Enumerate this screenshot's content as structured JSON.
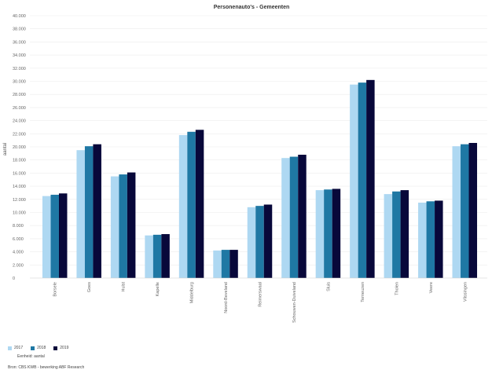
{
  "chart_data": {
    "type": "bar",
    "title": "Personenauto's - Gemeenten",
    "ylabel": "aantal",
    "xlabel": "",
    "ylim": [
      0,
      40000
    ],
    "yticks": [
      0,
      2000,
      4000,
      6000,
      8000,
      10000,
      12000,
      14000,
      16000,
      18000,
      20000,
      22000,
      24000,
      26000,
      28000,
      30000,
      32000,
      34000,
      36000,
      38000,
      40000
    ],
    "ytick_labels": [
      "0",
      "2.000",
      "4.000",
      "6.000",
      "8.000",
      "10.000",
      "12.000",
      "14.000",
      "16.000",
      "18.000",
      "20.000",
      "22.000",
      "24.000",
      "26.000",
      "28.000",
      "30.000",
      "32.000",
      "34.000",
      "36.000",
      "38.000",
      "40.000"
    ],
    "grid": true,
    "legend_position": "bottom-left",
    "categories": [
      "Borsele",
      "Goes",
      "Hulst",
      "Kapelle",
      "Middelburg",
      "Noord-Beveland",
      "Reimerswaal",
      "Schouwen-Duiveland",
      "Sluis",
      "Terneuzen",
      "Tholen",
      "Veere",
      "Vlissingen"
    ],
    "series": [
      {
        "name": "2017",
        "color": "#aed8f2",
        "values": [
          12500,
          19500,
          15500,
          6500,
          21800,
          4200,
          10800,
          18300,
          13400,
          29500,
          12800,
          11500,
          20100
        ]
      },
      {
        "name": "2018",
        "color": "#1f78a4",
        "values": [
          12700,
          20100,
          15800,
          6600,
          22300,
          4300,
          11000,
          18500,
          13500,
          29800,
          13200,
          11700,
          20400
        ]
      },
      {
        "name": "2019",
        "color": "#08083a",
        "values": [
          12900,
          20400,
          16100,
          6700,
          22600,
          4300,
          11200,
          18800,
          13600,
          30200,
          13400,
          11800,
          20600
        ]
      }
    ]
  },
  "footer": {
    "unit_note": "Eenheid: aantal",
    "source_note": "Bron: CBS KWB - bewerking ABF Research"
  }
}
